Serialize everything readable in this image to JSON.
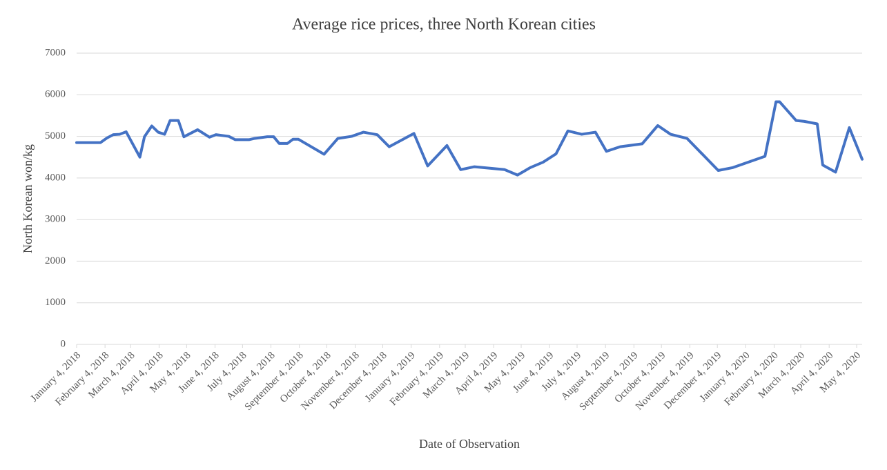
{
  "chart_data": {
    "type": "line",
    "title": "Average rice prices, three North Korean cities",
    "x_label": "Date of Observation",
    "y_label": "North Korean won/kg",
    "x": [
      "2018-01-04",
      "2018-01-30",
      "2018-02-06",
      "2018-02-13",
      "2018-02-20",
      "2018-02-27",
      "2018-03-14",
      "2018-03-19",
      "2018-03-27",
      "2018-04-03",
      "2018-04-10",
      "2018-04-16",
      "2018-04-25",
      "2018-05-01",
      "2018-05-16",
      "2018-05-29",
      "2018-06-05",
      "2018-06-19",
      "2018-06-26",
      "2018-07-11",
      "2018-07-17",
      "2018-07-31",
      "2018-08-07",
      "2018-08-13",
      "2018-08-22",
      "2018-08-28",
      "2018-09-03",
      "2018-10-01",
      "2018-10-16",
      "2018-10-31",
      "2018-11-13",
      "2018-11-28",
      "2018-12-11",
      "2019-01-07",
      "2019-01-22",
      "2019-02-12",
      "2019-02-27",
      "2019-03-14",
      "2019-03-28",
      "2019-04-16",
      "2019-04-30",
      "2019-05-14",
      "2019-05-28",
      "2019-06-11",
      "2019-06-24",
      "2019-07-09",
      "2019-07-24",
      "2019-08-05",
      "2019-08-20",
      "2019-09-13",
      "2019-09-30",
      "2019-10-14",
      "2019-11-01",
      "2019-12-05",
      "2019-12-21",
      "2020-01-25",
      "2020-02-06",
      "2020-02-10",
      "2020-02-28",
      "2020-03-08",
      "2020-03-22",
      "2020-03-28",
      "2020-04-11",
      "2020-04-26",
      "2020-05-10"
    ],
    "series": [
      {
        "name": "Average rice price",
        "color": "#4472c4",
        "values": [
          4850,
          4850,
          4960,
          5040,
          5050,
          5110,
          4500,
          4990,
          5250,
          5100,
          5050,
          5380,
          5380,
          4990,
          5160,
          4980,
          5040,
          5000,
          4920,
          4920,
          4950,
          4990,
          4990,
          4830,
          4830,
          4930,
          4930,
          4570,
          4950,
          5000,
          5100,
          5040,
          4750,
          5070,
          4290,
          4780,
          4200,
          4270,
          4240,
          4200,
          4070,
          4250,
          4380,
          4580,
          5130,
          5050,
          5100,
          4640,
          4750,
          4820,
          5260,
          5050,
          4950,
          4180,
          4250,
          4520,
          5830,
          5830,
          5380,
          5360,
          5300,
          4310,
          4140,
          5210,
          4450
        ]
      }
    ],
    "xlim": [
      "2018-01-04",
      "2020-05-10"
    ],
    "xticks": [
      {
        "value": "2018-01-04",
        "label": "January 4, 2018"
      },
      {
        "value": "2018-02-04",
        "label": "February 4, 2018"
      },
      {
        "value": "2018-03-04",
        "label": "March 4, 2018"
      },
      {
        "value": "2018-04-04",
        "label": "April 4, 2018"
      },
      {
        "value": "2018-05-04",
        "label": "May 4, 2018"
      },
      {
        "value": "2018-06-04",
        "label": "June 4, 2018"
      },
      {
        "value": "2018-07-04",
        "label": "July 4, 2018"
      },
      {
        "value": "2018-08-04",
        "label": "August 4, 2018"
      },
      {
        "value": "2018-09-04",
        "label": "September 4, 2018"
      },
      {
        "value": "2018-10-04",
        "label": "October 4, 2018"
      },
      {
        "value": "2018-11-04",
        "label": "November 4, 2018"
      },
      {
        "value": "2018-12-04",
        "label": "December 4, 2018"
      },
      {
        "value": "2019-01-04",
        "label": "January 4, 2019"
      },
      {
        "value": "2019-02-04",
        "label": "February 4, 2019"
      },
      {
        "value": "2019-03-04",
        "label": "March 4, 2019"
      },
      {
        "value": "2019-04-04",
        "label": "April 4, 2019"
      },
      {
        "value": "2019-05-04",
        "label": "May 4, 2019"
      },
      {
        "value": "2019-06-04",
        "label": "June 4, 2019"
      },
      {
        "value": "2019-07-04",
        "label": "July 4, 2019"
      },
      {
        "value": "2019-08-04",
        "label": "August 4, 2019"
      },
      {
        "value": "2019-09-04",
        "label": "September 4, 2019"
      },
      {
        "value": "2019-10-04",
        "label": "October 4, 2019"
      },
      {
        "value": "2019-11-04",
        "label": "November 4, 2019"
      },
      {
        "value": "2019-12-04",
        "label": "December 4, 2019"
      },
      {
        "value": "2020-01-04",
        "label": "January 4, 2020"
      },
      {
        "value": "2020-02-04",
        "label": "February 4, 2020"
      },
      {
        "value": "2020-03-04",
        "label": "March 4, 2020"
      },
      {
        "value": "2020-04-04",
        "label": "April 4, 2020"
      },
      {
        "value": "2020-05-04",
        "label": "May 4, 2020"
      }
    ],
    "ylim": [
      0,
      7000
    ],
    "yticks": [
      0,
      1000,
      2000,
      3000,
      4000,
      5000,
      6000,
      7000
    ],
    "grid": true
  }
}
